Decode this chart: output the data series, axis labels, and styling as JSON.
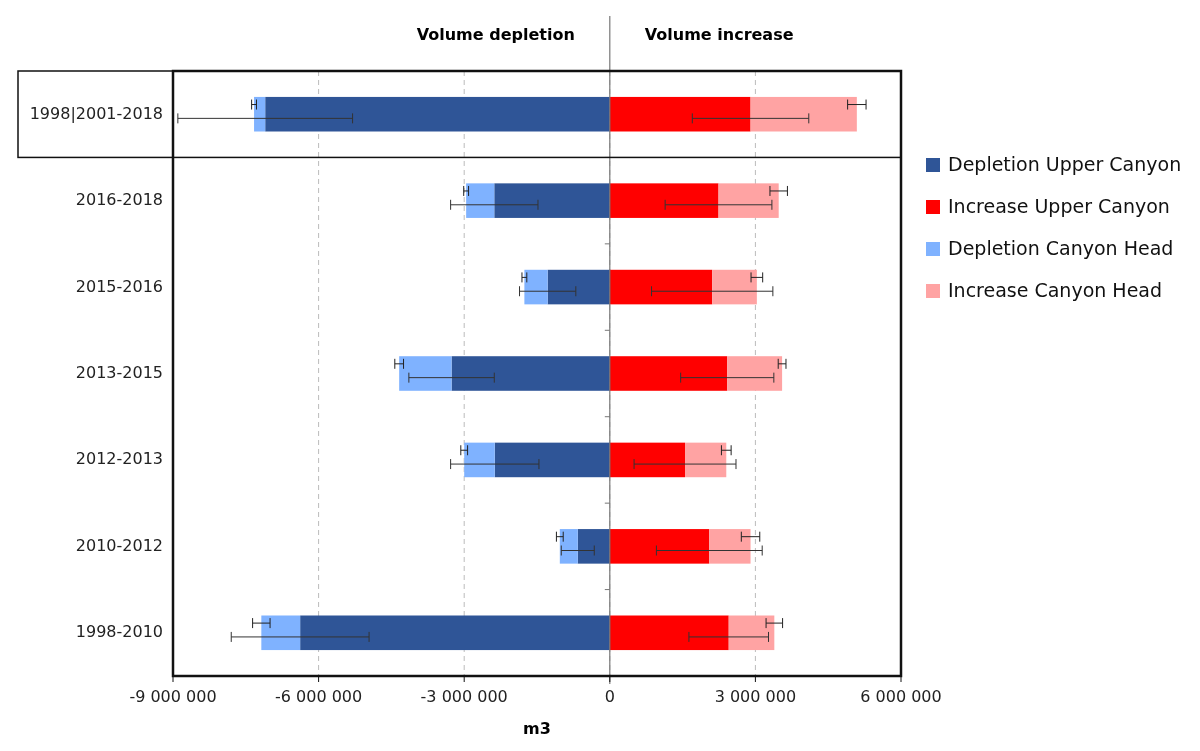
{
  "chart_data": {
    "type": "bar",
    "orientation": "horizontal",
    "stacked": true,
    "categories": [
      "1998|2001-2018",
      "2016-2018",
      "2015-2016",
      "2013-2015",
      "2012-2013",
      "2010-2012",
      "1998-2010"
    ],
    "xlabel": "m3",
    "annotations": [
      "Volume depletion",
      "Volume increase"
    ],
    "xlim": [
      -9000000,
      6000000
    ],
    "xticks": [
      {
        "value": -9000000,
        "label": "-9 000 000"
      },
      {
        "value": -6000000,
        "label": "-6 000 000"
      },
      {
        "value": -3000000,
        "label": "-3 000 000"
      },
      0,
      {
        "value": 3000000,
        "label": "3 000 000"
      },
      {
        "value": 6000000,
        "label": "6 000 000"
      }
    ],
    "grid": "x",
    "legend": "right",
    "series": [
      {
        "name": "Depletion Upper Canyon",
        "color": "#2f5597",
        "values": [
          -7100000,
          -2380000,
          -1280000,
          -3260000,
          -2370000,
          -660000,
          -6380000
        ],
        "errors": [
          1800000,
          900000,
          580000,
          880000,
          910000,
          340000,
          1420000
        ]
      },
      {
        "name": "Increase Upper Canyon",
        "color": "#ff0000",
        "values": [
          2900000,
          2240000,
          2110000,
          2420000,
          1550000,
          2050000,
          2450000
        ],
        "errors": [
          1200000,
          1100000,
          1250000,
          960000,
          1050000,
          1090000,
          820000
        ]
      },
      {
        "name": "Depletion Canyon Head",
        "color": "#7fb2ff",
        "values": [
          -230000,
          -580000,
          -480000,
          -1080000,
          -630000,
          -370000,
          -800000
        ],
        "errors": [
          50000,
          50000,
          50000,
          90000,
          70000,
          70000,
          180000
        ]
      },
      {
        "name": "Increase Canyon Head",
        "color": "#ffa3a3",
        "values": [
          2190000,
          1240000,
          920000,
          1130000,
          850000,
          850000,
          940000
        ],
        "errors": [
          190000,
          180000,
          120000,
          80000,
          100000,
          190000,
          170000
        ]
      }
    ]
  }
}
